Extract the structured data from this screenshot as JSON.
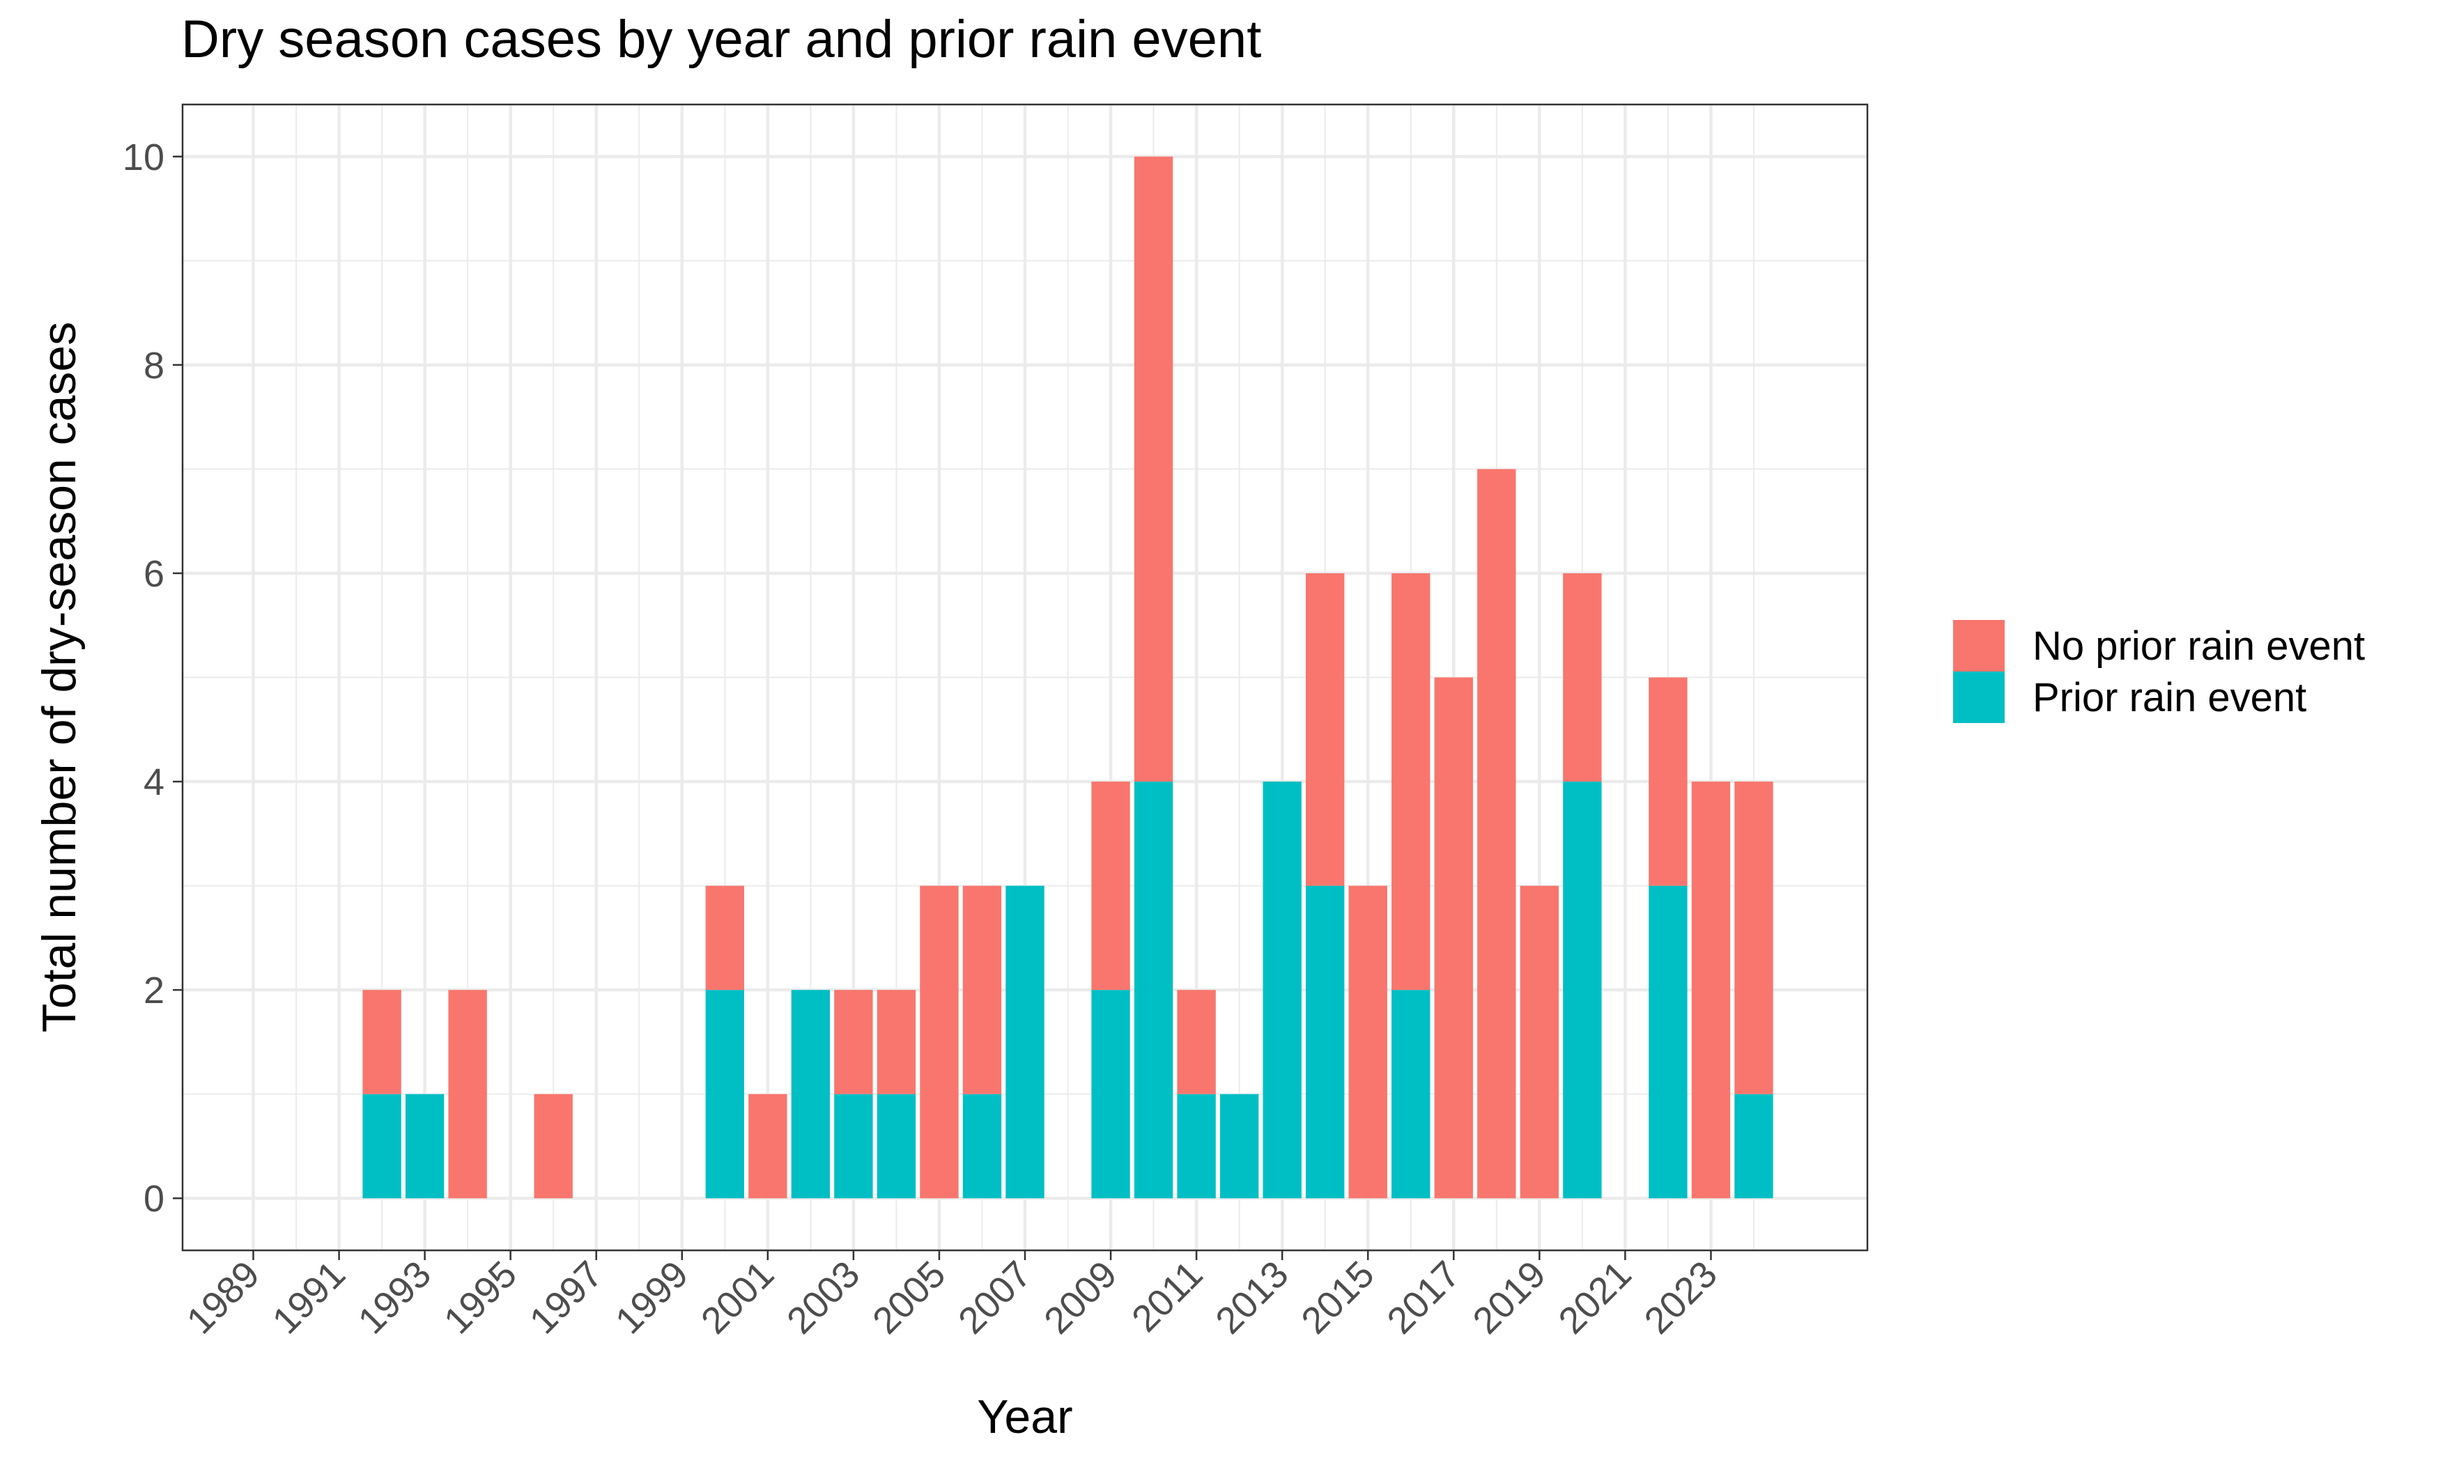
{
  "chart_data": {
    "type": "bar",
    "stacked": true,
    "title": "Dry season cases by year and prior rain event",
    "xlabel": "Year",
    "ylabel": "Total number of dry-season cases",
    "x": [
      1992,
      1993,
      1994,
      1996,
      2000,
      2001,
      2002,
      2003,
      2004,
      2005,
      2006,
      2007,
      2009,
      2010,
      2011,
      2012,
      2013,
      2014,
      2015,
      2016,
      2017,
      2018,
      2019,
      2020,
      2022,
      2023,
      2024
    ],
    "series": [
      {
        "name": "Prior rain event",
        "color": "#00BFC4",
        "values": [
          1,
          1,
          0,
          0,
          2,
          0,
          2,
          1,
          1,
          0,
          1,
          3,
          2,
          4,
          1,
          1,
          4,
          3,
          0,
          2,
          0,
          0,
          0,
          4,
          3,
          0,
          1
        ]
      },
      {
        "name": "No prior rain event",
        "color": "#F8766D",
        "values": [
          1,
          0,
          2,
          1,
          1,
          1,
          0,
          1,
          1,
          3,
          2,
          0,
          2,
          6,
          1,
          0,
          0,
          3,
          3,
          4,
          5,
          7,
          3,
          2,
          2,
          4,
          3
        ]
      }
    ],
    "xlim": [
      1987.35,
      2026.65
    ],
    "ylim": [
      -0.5,
      10.5
    ],
    "x_ticks": [
      "1989",
      "1991",
      "1993",
      "1995",
      "1997",
      "1999",
      "2001",
      "2003",
      "2005",
      "2007",
      "2009",
      "2011",
      "2013",
      "2015",
      "2017",
      "2019",
      "2021",
      "2023"
    ],
    "y_ticks": [
      "0",
      "2",
      "4",
      "6",
      "8",
      "10"
    ],
    "legend": {
      "position": "right",
      "items": [
        "No prior rain event",
        "Prior rain event"
      ]
    },
    "grid": true
  }
}
